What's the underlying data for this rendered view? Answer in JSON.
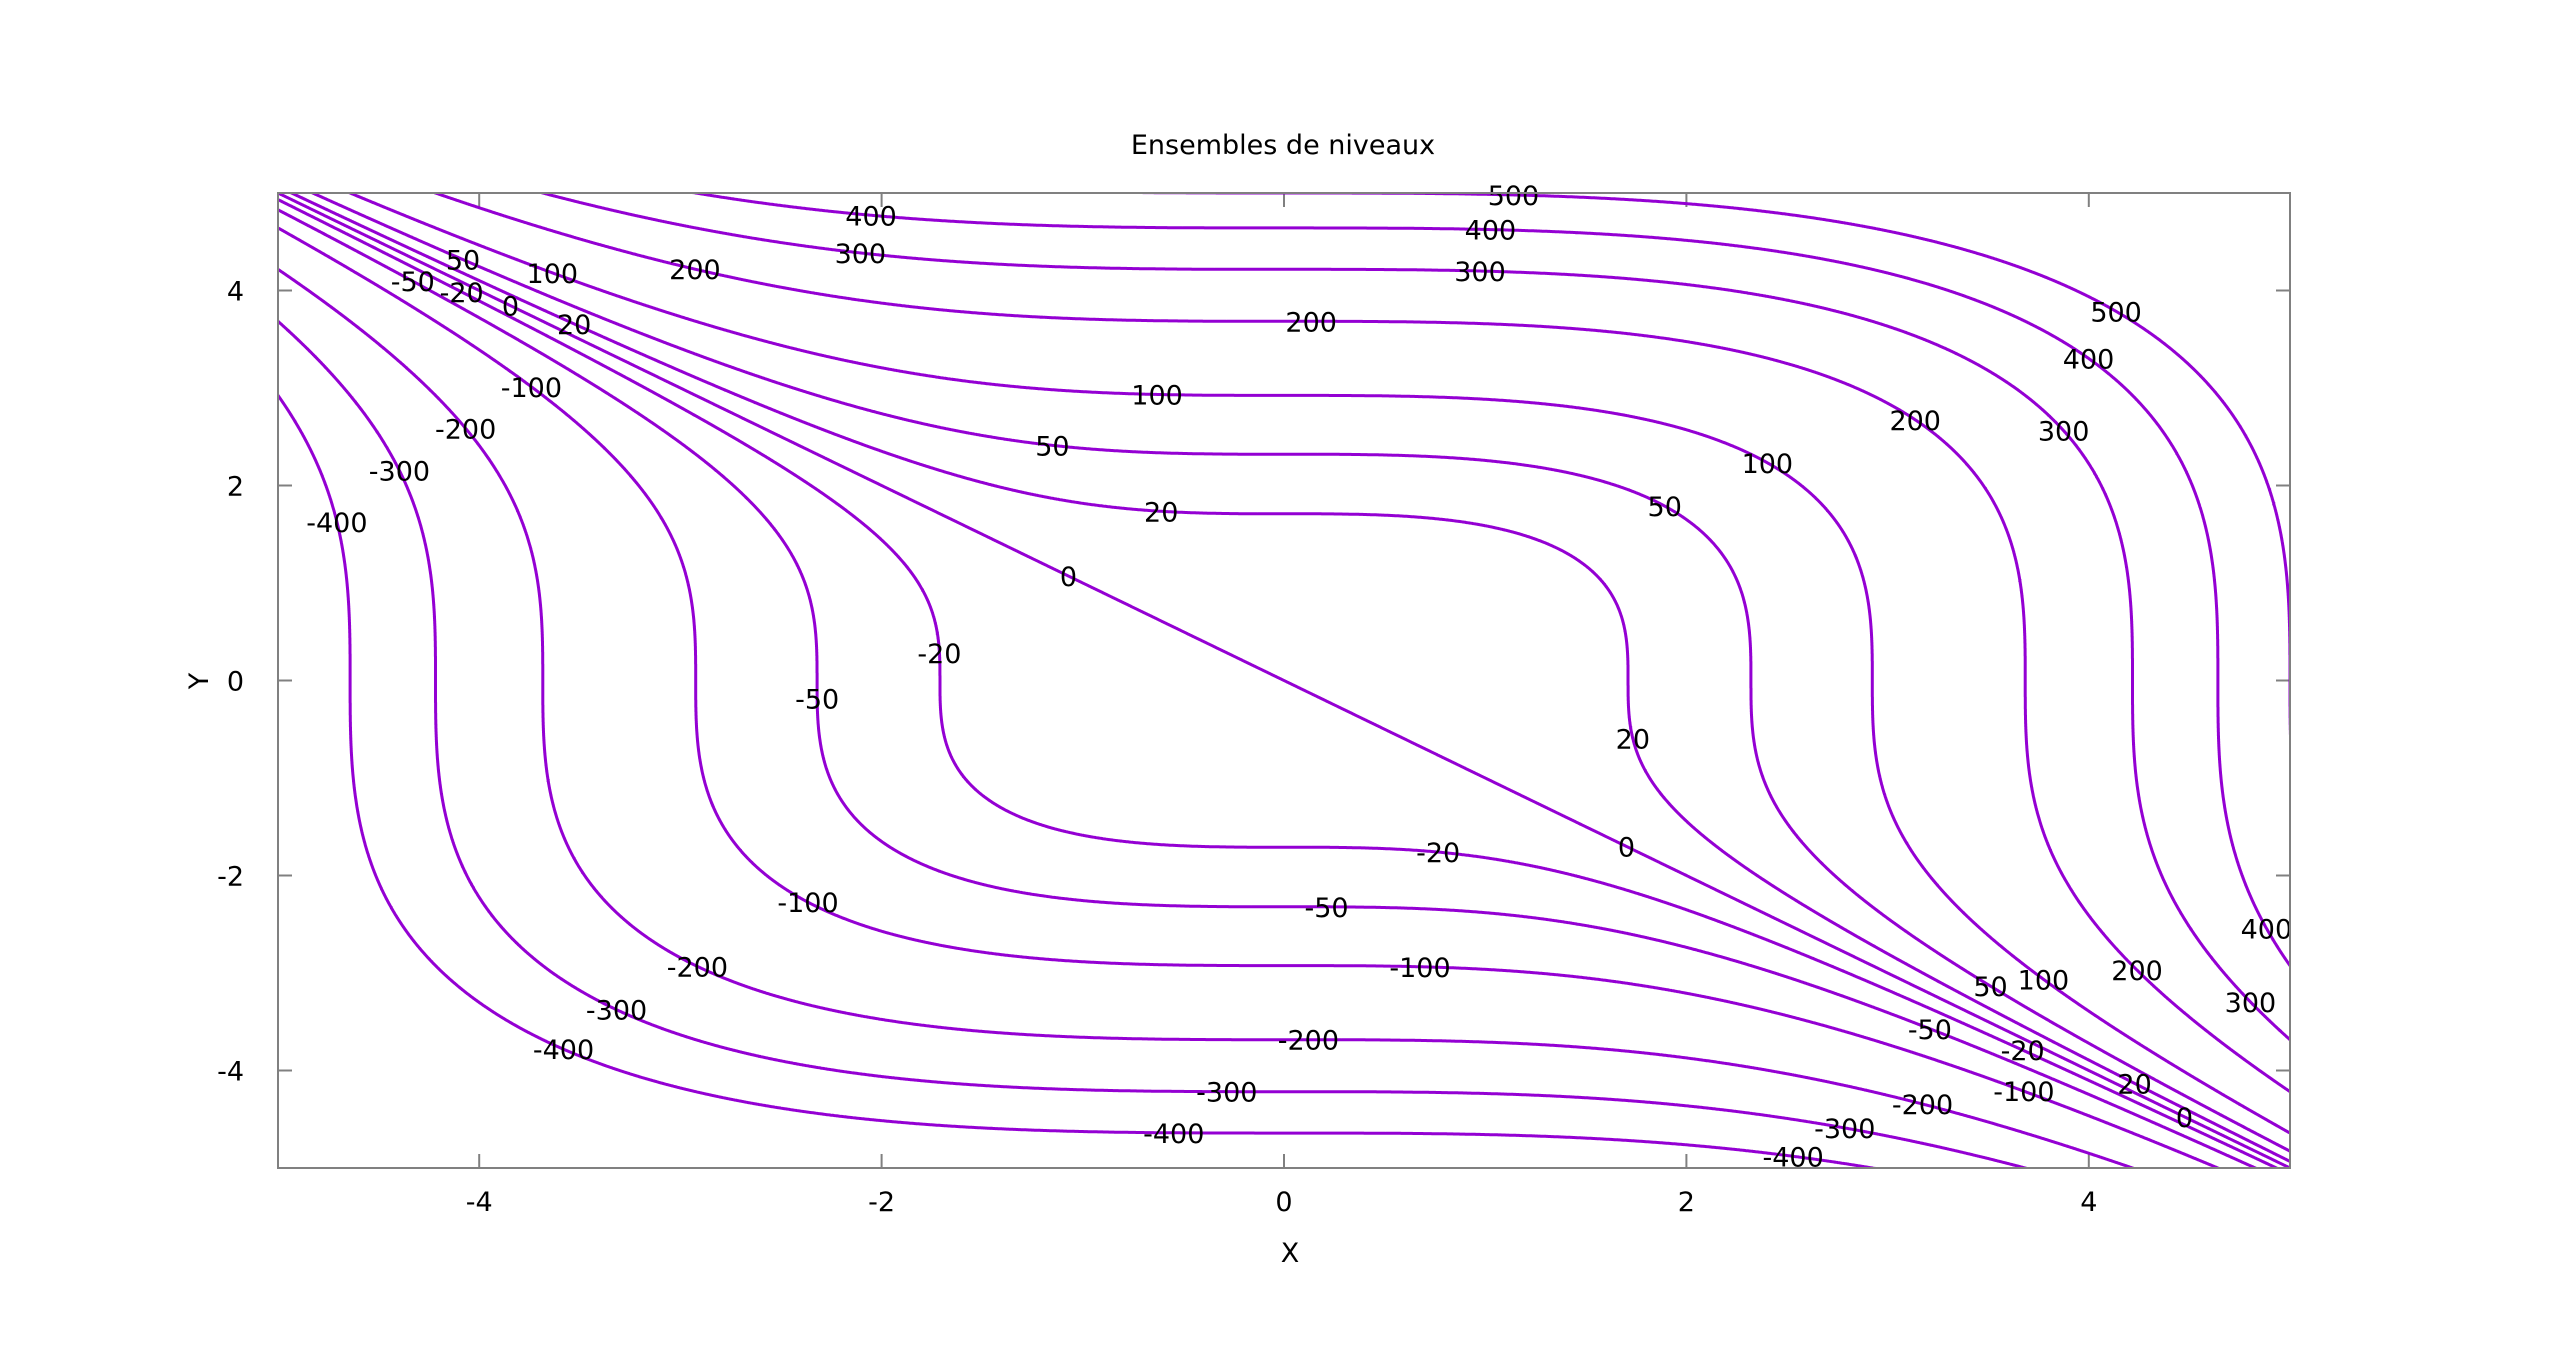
{
  "chart_data": {
    "type": "contour",
    "title": "Ensembles de niveaux",
    "xlabel": "X",
    "ylabel": "Y",
    "xlim": [
      -5,
      5
    ],
    "ylim": [
      -5,
      5
    ],
    "xticks": [
      "-4",
      "-2",
      "0",
      "2",
      "4"
    ],
    "yticks": [
      "-4",
      "-2",
      "0",
      "2",
      "4"
    ],
    "levels": [
      -400,
      -300,
      -200,
      -100,
      -50,
      -20,
      0,
      20,
      50,
      100,
      200,
      300,
      400,
      500
    ],
    "line_color": "#9400d3",
    "grid": false,
    "legend": "none"
  }
}
